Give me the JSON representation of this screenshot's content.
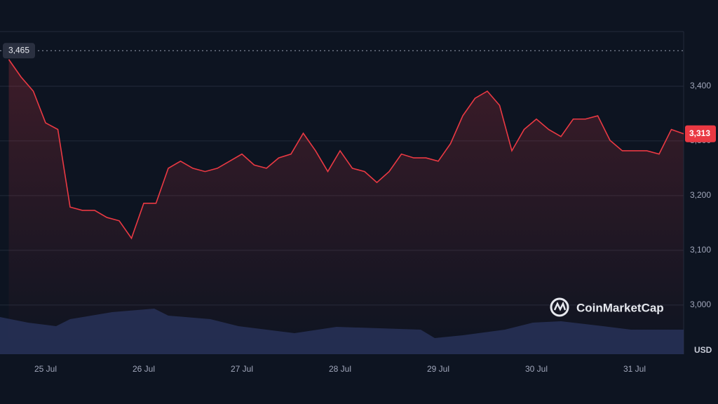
{
  "chart_data": {
    "type": "line",
    "categories": [
      null,
      null,
      null,
      "25 Jul",
      null,
      null,
      null,
      null,
      null,
      null,
      null,
      "26 Jul",
      null,
      null,
      null,
      null,
      null,
      null,
      null,
      "27 Jul",
      null,
      null,
      null,
      null,
      null,
      null,
      null,
      "28 Jul",
      null,
      null,
      null,
      null,
      null,
      null,
      null,
      "29 Jul",
      null,
      null,
      null,
      null,
      null,
      null,
      null,
      "30 Jul",
      null,
      null,
      null,
      null,
      null,
      null,
      null,
      "31 Jul",
      null,
      null,
      null,
      null
    ],
    "series": [
      {
        "color": "#ea3943",
        "values": [
          3449,
          3417,
          3391,
          3333,
          3321,
          3179,
          3173,
          3173,
          3160,
          3154,
          3122,
          3186,
          3186,
          3250,
          3263,
          3250,
          3244,
          3250,
          3263,
          3276,
          3256,
          3250,
          3269,
          3276,
          3314,
          3282,
          3244,
          3282,
          3250,
          3244,
          3224,
          3244,
          3276,
          3269,
          3269,
          3263,
          3295,
          3346,
          3378,
          3391,
          3365,
          3282,
          3321,
          3340,
          3321,
          3308,
          3340,
          3340,
          3346,
          3301,
          3282,
          3282,
          3282,
          3276,
          3321,
          3313
        ]
      }
    ],
    "ylim": [
      2910,
      3500
    ],
    "yticks": [
      {
        "value": 3000,
        "label": "3,000"
      },
      {
        "value": 3100,
        "label": "3,100"
      },
      {
        "value": 3200,
        "label": "3,200"
      },
      {
        "value": 3300,
        "label": "3,300"
      },
      {
        "value": 3400,
        "label": "3,400"
      }
    ],
    "grid": true,
    "high": {
      "value": 3465,
      "label": "3,465"
    },
    "current": {
      "value": 3313,
      "label": "3,313"
    },
    "currency": "USD",
    "watermark": "CoinMarketCap"
  }
}
